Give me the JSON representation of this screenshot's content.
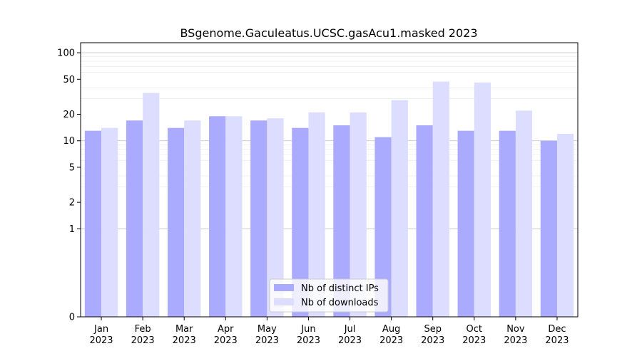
{
  "chart_data": {
    "type": "bar",
    "title": "BSgenome.Gaculeatus.UCSC.gasAcu1.masked 2023",
    "xlabel": "",
    "ylabel": "",
    "y_scale": "symlog",
    "ylim": [
      0,
      130
    ],
    "y_ticks": [
      0,
      1,
      2,
      5,
      10,
      20,
      50,
      100
    ],
    "grid": true,
    "legend_position": "bottom-center",
    "categories": [
      [
        "Jan",
        "2023"
      ],
      [
        "Feb",
        "2023"
      ],
      [
        "Mar",
        "2023"
      ],
      [
        "Apr",
        "2023"
      ],
      [
        "May",
        "2023"
      ],
      [
        "Jun",
        "2023"
      ],
      [
        "Jul",
        "2023"
      ],
      [
        "Aug",
        "2023"
      ],
      [
        "Sep",
        "2023"
      ],
      [
        "Oct",
        "2023"
      ],
      [
        "Nov",
        "2023"
      ],
      [
        "Dec",
        "2023"
      ]
    ],
    "series": [
      {
        "name": "Nb of distinct IPs",
        "color": "#aaaaff",
        "values": [
          13,
          17,
          14,
          19,
          17,
          14,
          15,
          11,
          15,
          13,
          13,
          10
        ]
      },
      {
        "name": "Nb of downloads",
        "color": "#ddddff",
        "values": [
          14,
          35,
          17,
          19,
          18,
          21,
          21,
          29,
          47,
          46,
          22,
          12
        ]
      }
    ]
  }
}
